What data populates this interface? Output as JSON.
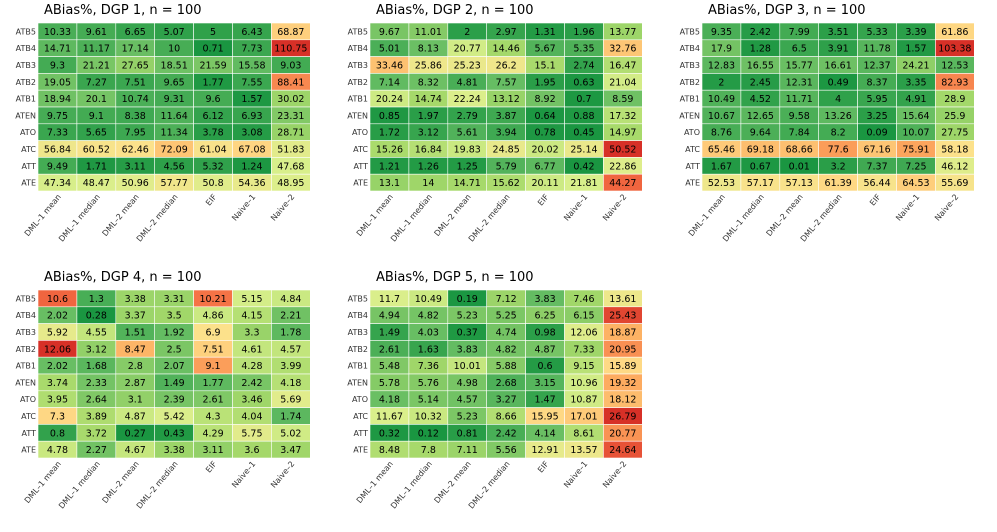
{
  "colors": {
    "scale": [
      "#1a9641",
      "#66bd63",
      "#a6d96a",
      "#d9ef8b",
      "#fee08b",
      "#fdae61",
      "#f46d43",
      "#d73027"
    ]
  },
  "chart_data": [
    {
      "type": "heatmap",
      "title": "ABias%, DGP 1, n = 100",
      "rows": [
        "ATB5",
        "ATB4",
        "ATB3",
        "ATB2",
        "ATB1",
        "ATEN",
        "ATO",
        "ATC",
        "ATT",
        "ATE"
      ],
      "columns": [
        "DML–1 mean",
        "DML–1 median",
        "DML–2 mean",
        "DML–2 median",
        "EIF",
        "Naive–1",
        "Naive–2"
      ],
      "values": [
        [
          10.33,
          9.61,
          6.65,
          5.07,
          5,
          6.43,
          68.87
        ],
        [
          14.71,
          11.17,
          17.14,
          10,
          0.71,
          7.73,
          110.75
        ],
        [
          9.3,
          21.21,
          27.65,
          18.51,
          21.59,
          15.58,
          9.03
        ],
        [
          19.05,
          7.27,
          7.51,
          9.65,
          1.77,
          7.55,
          88.41
        ],
        [
          18.94,
          20.1,
          10.74,
          9.31,
          9.6,
          1.57,
          30.02
        ],
        [
          9.75,
          9.1,
          8.38,
          11.64,
          6.12,
          6.93,
          23.31
        ],
        [
          7.33,
          5.65,
          7.95,
          11.34,
          3.78,
          3.08,
          28.71
        ],
        [
          56.84,
          60.52,
          62.46,
          72.09,
          61.04,
          67.08,
          51.83
        ],
        [
          9.49,
          1.71,
          3.11,
          4.56,
          5.32,
          1.24,
          47.68
        ],
        [
          47.34,
          48.47,
          50.96,
          57.77,
          50.8,
          54.36,
          48.95
        ]
      ]
    },
    {
      "type": "heatmap",
      "title": "ABias%, DGP 2, n = 100",
      "rows": [
        "ATB5",
        "ATB4",
        "ATB3",
        "ATB2",
        "ATB1",
        "ATEN",
        "ATO",
        "ATC",
        "ATT",
        "ATE"
      ],
      "columns": [
        "DML–1 mean",
        "DML–1 median",
        "DML–2 mean",
        "DML–2 median",
        "EIF",
        "Naive–1",
        "Naive–2"
      ],
      "values": [
        [
          9.67,
          11.01,
          2,
          2.97,
          1.31,
          1.96,
          13.77
        ],
        [
          5.01,
          8.13,
          20.77,
          14.46,
          5.67,
          5.35,
          32.76
        ],
        [
          33.46,
          25.86,
          25.23,
          26.2,
          15.1,
          2.74,
          16.47
        ],
        [
          7.14,
          8.32,
          4.81,
          7.57,
          1.95,
          0.63,
          21.04
        ],
        [
          20.24,
          14.74,
          22.24,
          13.12,
          8.92,
          0.7,
          8.59
        ],
        [
          0.85,
          1.97,
          2.79,
          3.87,
          0.64,
          0.88,
          17.32
        ],
        [
          1.72,
          3.12,
          5.61,
          3.94,
          0.78,
          0.45,
          14.97
        ],
        [
          15.26,
          16.84,
          19.83,
          24.85,
          20.02,
          25.14,
          50.52
        ],
        [
          1.21,
          1.26,
          1.25,
          5.79,
          6.77,
          0.42,
          22.86
        ],
        [
          13.1,
          14,
          14.71,
          15.62,
          20.11,
          21.81,
          44.27
        ]
      ]
    },
    {
      "type": "heatmap",
      "title": "ABias%, DGP 3, n = 100",
      "rows": [
        "ATB5",
        "ATB4",
        "ATB3",
        "ATB2",
        "ATB1",
        "ATEN",
        "ATO",
        "ATC",
        "ATT",
        "ATE"
      ],
      "columns": [
        "DML–1 mean",
        "DML–1 median",
        "DML–2 mean",
        "DML–2 median",
        "EIF",
        "Naive–1",
        "Naive–2"
      ],
      "values": [
        [
          9.35,
          2.42,
          7.99,
          3.51,
          5.33,
          3.39,
          61.86
        ],
        [
          17.9,
          1.28,
          6.5,
          3.91,
          11.78,
          1.57,
          103.38
        ],
        [
          12.83,
          16.55,
          15.77,
          16.61,
          12.37,
          24.21,
          12.53
        ],
        [
          2,
          2.45,
          12.31,
          0.49,
          8.37,
          3.35,
          82.93
        ],
        [
          10.49,
          4.52,
          11.71,
          4,
          5.95,
          4.91,
          28.9
        ],
        [
          10.67,
          12.65,
          9.58,
          13.26,
          3.25,
          15.64,
          25.9
        ],
        [
          8.76,
          9.64,
          7.84,
          8.2,
          0.09,
          10.07,
          27.75
        ],
        [
          65.46,
          69.18,
          68.66,
          77.6,
          67.16,
          75.91,
          58.18
        ],
        [
          1.67,
          0.67,
          0.01,
          3.2,
          7.37,
          7.25,
          46.12
        ],
        [
          52.53,
          57.17,
          57.13,
          61.39,
          56.44,
          64.53,
          55.69
        ]
      ]
    },
    {
      "type": "heatmap",
      "title": "ABias%, DGP 4, n = 100",
      "rows": [
        "ATB5",
        "ATB4",
        "ATB3",
        "ATB2",
        "ATB1",
        "ATEN",
        "ATO",
        "ATC",
        "ATT",
        "ATE"
      ],
      "columns": [
        "DML–1 mean",
        "DML–1 median",
        "DML–2 mean",
        "DML–2 median",
        "EIF",
        "Naive–1",
        "Naive–2"
      ],
      "values": [
        [
          10.6,
          1.3,
          3.38,
          3.31,
          10.21,
          5.15,
          4.84
        ],
        [
          2.02,
          0.28,
          3.37,
          3.5,
          4.86,
          4.15,
          2.21
        ],
        [
          5.92,
          4.55,
          1.51,
          1.92,
          6.9,
          3.3,
          1.78
        ],
        [
          12.06,
          3.12,
          8.47,
          2.5,
          7.51,
          4.61,
          4.57
        ],
        [
          2.02,
          1.68,
          2.8,
          2.07,
          9.1,
          4.28,
          3.99
        ],
        [
          3.74,
          2.33,
          2.87,
          1.49,
          1.77,
          2.42,
          4.18
        ],
        [
          3.95,
          2.64,
          3.1,
          2.39,
          2.61,
          3.46,
          5.69
        ],
        [
          7.3,
          3.89,
          4.87,
          5.42,
          4.3,
          4.04,
          1.74
        ],
        [
          0.8,
          3.72,
          0.27,
          0.43,
          4.29,
          5.75,
          5.02
        ],
        [
          4.78,
          2.27,
          4.67,
          3.38,
          3.11,
          3.6,
          3.47
        ]
      ]
    },
    {
      "type": "heatmap",
      "title": "ABias%, DGP 5, n = 100",
      "rows": [
        "ATB5",
        "ATB4",
        "ATB3",
        "ATB2",
        "ATB1",
        "ATEN",
        "ATO",
        "ATC",
        "ATT",
        "ATE"
      ],
      "columns": [
        "DML–1 mean",
        "DML–1 median",
        "DML–2 mean",
        "DML–2 median",
        "EIF",
        "Naive–1",
        "Naive–2"
      ],
      "values": [
        [
          11.7,
          10.49,
          0.19,
          7.12,
          3.83,
          7.46,
          13.61
        ],
        [
          4.94,
          4.82,
          5.23,
          5.25,
          6.25,
          6.15,
          25.43
        ],
        [
          1.49,
          4.03,
          0.37,
          4.74,
          0.98,
          12.06,
          18.87
        ],
        [
          2.61,
          1.63,
          3.83,
          4.82,
          4.87,
          7.33,
          20.95
        ],
        [
          5.48,
          7.36,
          10.01,
          5.88,
          0.6,
          9.15,
          15.89
        ],
        [
          5.78,
          5.76,
          4.98,
          2.68,
          3.15,
          10.96,
          19.32
        ],
        [
          4.18,
          5.14,
          4.57,
          3.27,
          1.47,
          10.87,
          18.12
        ],
        [
          11.67,
          10.32,
          5.23,
          8.66,
          15.95,
          17.01,
          26.79
        ],
        [
          0.32,
          0.12,
          0.81,
          2.42,
          4.14,
          8.61,
          20.77
        ],
        [
          8.48,
          7.8,
          7.11,
          5.56,
          12.91,
          13.57,
          24.64
        ]
      ]
    }
  ]
}
